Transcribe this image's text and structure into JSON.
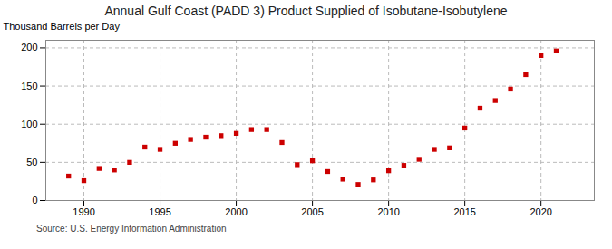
{
  "chart_data": {
    "type": "scatter",
    "title": "Annual Gulf Coast (PADD 3) Product Supplied of Isobutane-Isobutylene",
    "ylabel": "Thousand Barrels per Day",
    "source": "Source: U.S. Energy Information Administration",
    "x": [
      1989,
      1990,
      1991,
      1992,
      1993,
      1994,
      1995,
      1996,
      1997,
      1998,
      1999,
      2000,
      2001,
      2002,
      2003,
      2004,
      2005,
      2006,
      2007,
      2008,
      2009,
      2010,
      2011,
      2012,
      2013,
      2014,
      2015,
      2016,
      2017,
      2018,
      2019,
      2020,
      2021
    ],
    "values": [
      32,
      26,
      42,
      40,
      50,
      70,
      67,
      75,
      80,
      83,
      85,
      88,
      93,
      93,
      76,
      47,
      52,
      38,
      28,
      21,
      27,
      39,
      46,
      54,
      67,
      69,
      95,
      121,
      131,
      146,
      165,
      190,
      196
    ],
    "color": "#cc0000",
    "marker": "square",
    "xlim": [
      1987.5,
      2023.5
    ],
    "xticks": [
      1990,
      1995,
      2000,
      2005,
      2010,
      2015,
      2020
    ],
    "ylim": [
      0,
      210
    ],
    "yticks": [
      0,
      50,
      100,
      150,
      200
    ],
    "grid": true
  }
}
